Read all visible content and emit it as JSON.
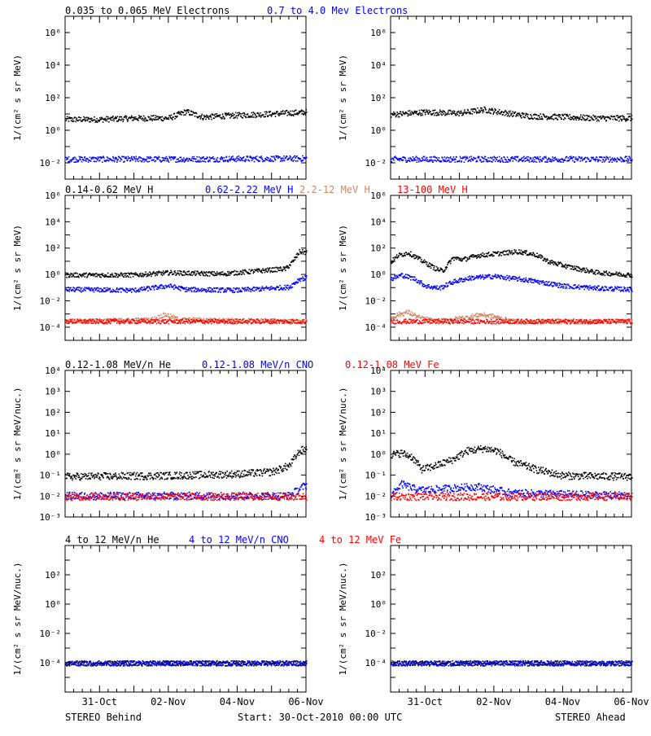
{
  "footer": {
    "left": "STEREO Behind",
    "center": "Start: 30-Oct-2010 00:00 UTC",
    "right": "STEREO Ahead"
  },
  "colors": {
    "black": "#000000",
    "blue": "#0000ff",
    "tan": "#cc8866",
    "red": "#ff0000"
  },
  "chart_data": [
    {
      "type": "scatter",
      "panel": "electrons",
      "ylabel": "1/(cm² s sr MeV)",
      "yscale": "log",
      "ylim": [
        0.001,
        10000000
      ],
      "ytick_exponents": [
        -2,
        0,
        2,
        4,
        6
      ],
      "xlim_days": [
        0,
        7
      ],
      "xtick_labels": [
        "31-Oct",
        "02-Nov",
        "04-Nov",
        "06-Nov"
      ],
      "legend": [
        {
          "text": "0.035 to 0.065 MeV Electrons",
          "color": "#000000"
        },
        {
          "text": "0.7 to 4.0 Mev Electrons",
          "color": "#0000ff"
        }
      ],
      "behind": [
        {
          "name": "0.035 to 0.065 MeV Electrons",
          "color": "#000000",
          "points": [
            [
              0,
              5
            ],
            [
              1,
              5
            ],
            [
              2,
              6
            ],
            [
              3,
              6
            ],
            [
              3.5,
              15
            ],
            [
              4,
              7
            ],
            [
              5,
              9
            ],
            [
              6,
              11
            ],
            [
              7,
              14
            ]
          ]
        },
        {
          "name": "0.7 to 4.0 Mev Electrons",
          "color": "#0000ff",
          "points": [
            [
              0,
              0.018
            ],
            [
              3,
              0.018
            ],
            [
              7,
              0.02
            ]
          ]
        }
      ],
      "ahead": [
        {
          "name": "0.035 to 0.065 MeV Electrons",
          "color": "#000000",
          "points": [
            [
              0,
              10
            ],
            [
              1,
              14
            ],
            [
              2,
              12
            ],
            [
              2.7,
              20
            ],
            [
              3.5,
              11
            ],
            [
              4,
              8
            ],
            [
              5,
              7
            ],
            [
              6,
              6
            ],
            [
              7,
              6
            ]
          ]
        },
        {
          "name": "0.7 to 4.0 Mev Electrons",
          "color": "#0000ff",
          "points": [
            [
              0,
              0.018
            ],
            [
              7,
              0.018
            ]
          ]
        }
      ]
    },
    {
      "type": "scatter",
      "panel": "protons",
      "ylabel": "1/(cm² s sr MeV)",
      "yscale": "log",
      "ylim": [
        1e-05,
        1000000
      ],
      "ytick_exponents": [
        -4,
        -2,
        0,
        2,
        4,
        6
      ],
      "xlim_days": [
        0,
        7
      ],
      "xtick_labels": [
        "31-Oct",
        "02-Nov",
        "04-Nov",
        "06-Nov"
      ],
      "legend": [
        {
          "text": "0.14-0.62 MeV H",
          "color": "#000000"
        },
        {
          "text": "0.62-2.22 MeV H",
          "color": "#0000ff"
        },
        {
          "text": "2.2-12 MeV H",
          "color": "#cc8866"
        },
        {
          "text": "13-100 MeV H",
          "color": "#ff0000"
        }
      ],
      "behind": [
        {
          "name": "0.14-0.62 MeV H",
          "color": "#000000",
          "points": [
            [
              0,
              1
            ],
            [
              2,
              1
            ],
            [
              3,
              1.5
            ],
            [
              4.5,
              1.2
            ],
            [
              6.4,
              3
            ],
            [
              6.6,
              10
            ],
            [
              6.8,
              60
            ],
            [
              7,
              50
            ]
          ]
        },
        {
          "name": "0.62-2.22 MeV H",
          "color": "#0000ff",
          "points": [
            [
              0,
              0.08
            ],
            [
              2,
              0.07
            ],
            [
              3,
              0.15
            ],
            [
              3.5,
              0.08
            ],
            [
              5,
              0.07
            ],
            [
              6.5,
              0.12
            ],
            [
              6.8,
              0.5
            ],
            [
              7,
              0.6
            ]
          ]
        },
        {
          "name": "2.2-12 MeV H",
          "color": "#cc8866",
          "points": [
            [
              0,
              0.0003
            ],
            [
              2.5,
              0.0004
            ],
            [
              2.9,
              0.001
            ],
            [
              3.3,
              0.0004
            ],
            [
              7,
              0.0003
            ]
          ]
        },
        {
          "name": "13-100 MeV H",
          "color": "#ff0000",
          "points": [
            [
              0,
              0.0003
            ],
            [
              7,
              0.0003
            ]
          ]
        }
      ],
      "ahead": [
        {
          "name": "0.14-0.62 MeV H",
          "color": "#000000",
          "points": [
            [
              0,
              10
            ],
            [
              0.2,
              30
            ],
            [
              0.5,
              50
            ],
            [
              0.9,
              12
            ],
            [
              1.3,
              3
            ],
            [
              1.5,
              2
            ],
            [
              1.8,
              20
            ],
            [
              2.1,
              15
            ],
            [
              2.5,
              30
            ],
            [
              3,
              40
            ],
            [
              3.7,
              60
            ],
            [
              4.2,
              35
            ],
            [
              4.6,
              10
            ],
            [
              5.2,
              4
            ],
            [
              6,
              1.5
            ],
            [
              7,
              1
            ]
          ]
        },
        {
          "name": "0.62-2.22 MeV H",
          "color": "#0000ff",
          "points": [
            [
              0,
              0.5
            ],
            [
              0.3,
              1
            ],
            [
              0.7,
              0.5
            ],
            [
              1,
              0.15
            ],
            [
              1.4,
              0.1
            ],
            [
              1.8,
              0.3
            ],
            [
              2.3,
              0.6
            ],
            [
              3,
              0.8
            ],
            [
              4,
              0.4
            ],
            [
              5,
              0.15
            ],
            [
              6,
              0.1
            ],
            [
              7,
              0.08
            ]
          ]
        },
        {
          "name": "2.2-12 MeV H",
          "color": "#cc8866",
          "points": [
            [
              0,
              0.0005
            ],
            [
              0.2,
              0.001
            ],
            [
              0.5,
              0.0015
            ],
            [
              0.8,
              0.0006
            ],
            [
              1.3,
              0.0003
            ],
            [
              2.2,
              0.0006
            ],
            [
              2.6,
              0.001
            ],
            [
              3,
              0.0007
            ],
            [
              3.5,
              0.0003
            ],
            [
              7,
              0.0003
            ]
          ]
        },
        {
          "name": "13-100 MeV H",
          "color": "#ff0000",
          "points": [
            [
              0,
              0.0003
            ],
            [
              7,
              0.0003
            ]
          ]
        }
      ]
    },
    {
      "type": "scatter",
      "panel": "ions-low",
      "ylabel": "1/(cm² s sr MeV/nuc.)",
      "yscale": "log",
      "ylim": [
        0.001,
        10000
      ],
      "ytick_exponents": [
        -3,
        -2,
        -1,
        0,
        1,
        2,
        3,
        4
      ],
      "xlim_days": [
        0,
        7
      ],
      "xtick_labels": [
        "31-Oct",
        "02-Nov",
        "04-Nov",
        "06-Nov"
      ],
      "legend": [
        {
          "text": "0.12-1.08 MeV/n He",
          "color": "#000000"
        },
        {
          "text": "0.12-1.08 MeV/n CNO",
          "color": "#0000ff"
        },
        {
          "text": "0.12-1.08 MeV Fe",
          "color": "#ff0000"
        }
      ],
      "behind": [
        {
          "name": "0.12-1.08 MeV/n He",
          "color": "#000000",
          "points": [
            [
              0,
              0.09
            ],
            [
              3,
              0.1
            ],
            [
              5,
              0.12
            ],
            [
              6,
              0.15
            ],
            [
              6.5,
              0.3
            ],
            [
              6.8,
              1.5
            ],
            [
              7,
              2
            ]
          ]
        },
        {
          "name": "0.12-1.08 MeV/n CNO",
          "color": "#0000ff",
          "points": [
            [
              0,
              0.011
            ],
            [
              6.5,
              0.011
            ],
            [
              6.9,
              0.03
            ],
            [
              7,
              0.035
            ]
          ]
        },
        {
          "name": "0.12-1.08 MeV Fe",
          "color": "#ff0000",
          "points": [
            [
              0,
              0.01
            ],
            [
              7,
              0.01
            ]
          ]
        }
      ],
      "ahead": [
        {
          "name": "0.12-1.08 MeV/n He",
          "color": "#000000",
          "points": [
            [
              0,
              1
            ],
            [
              0.3,
              1.2
            ],
            [
              0.6,
              0.8
            ],
            [
              0.9,
              0.2
            ],
            [
              1.3,
              0.3
            ],
            [
              1.8,
              0.6
            ],
            [
              2.2,
              1.5
            ],
            [
              2.7,
              2
            ],
            [
              3.1,
              1.5
            ],
            [
              3.5,
              0.5
            ],
            [
              4.2,
              0.2
            ],
            [
              5,
              0.1
            ],
            [
              7,
              0.09
            ]
          ]
        },
        {
          "name": "0.12-1.08 MeV/n CNO",
          "color": "#0000ff",
          "points": [
            [
              0,
              0.011
            ],
            [
              0.3,
              0.04
            ],
            [
              0.8,
              0.02
            ],
            [
              2.5,
              0.03
            ],
            [
              3.5,
              0.015
            ],
            [
              7,
              0.011
            ]
          ]
        },
        {
          "name": "0.12-1.08 MeV Fe",
          "color": "#ff0000",
          "points": [
            [
              0,
              0.01
            ],
            [
              7,
              0.01
            ]
          ]
        }
      ]
    },
    {
      "type": "scatter",
      "panel": "ions-high",
      "ylabel": "1/(cm² s sr MeV/nuc.)",
      "yscale": "log",
      "ylim": [
        1e-06,
        10000
      ],
      "ytick_exponents": [
        -4,
        -2,
        0,
        2
      ],
      "xlim_days": [
        0,
        7
      ],
      "xtick_labels": [
        "31-Oct",
        "02-Nov",
        "04-Nov",
        "06-Nov"
      ],
      "legend": [
        {
          "text": "4 to 12 MeV/n He",
          "color": "#000000"
        },
        {
          "text": "4 to 12 MeV/n CNO",
          "color": "#0000ff"
        },
        {
          "text": "4 to 12 MeV Fe",
          "color": "#ff0000"
        }
      ],
      "behind": [
        {
          "name": "4 to 12 MeV/n He",
          "color": "#000000",
          "points": [
            [
              0,
              0.0001
            ],
            [
              7,
              0.0001
            ]
          ]
        },
        {
          "name": "4 to 12 MeV/n CNO",
          "color": "#0000ff",
          "points": [
            [
              0,
              0.0001
            ],
            [
              7,
              0.0001
            ]
          ]
        }
      ],
      "ahead": [
        {
          "name": "4 to 12 MeV/n He",
          "color": "#000000",
          "points": [
            [
              0,
              0.0001
            ],
            [
              7,
              0.0001
            ]
          ]
        },
        {
          "name": "4 to 12 MeV/n CNO",
          "color": "#0000ff",
          "points": [
            [
              0,
              0.0001
            ],
            [
              7,
              0.0001
            ]
          ]
        }
      ]
    }
  ]
}
